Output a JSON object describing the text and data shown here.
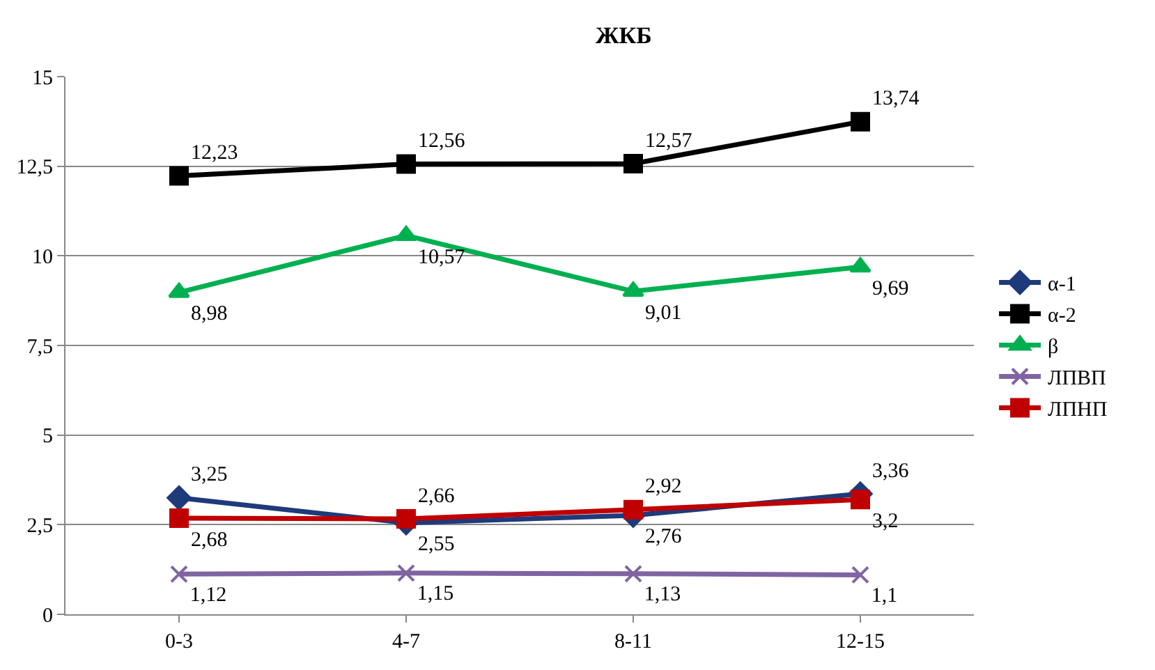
{
  "chart_data": {
    "type": "line",
    "title": "ЖКБ",
    "categories": [
      "0-3",
      "4-7",
      "8-11",
      "12-15"
    ],
    "series": [
      {
        "name": "α-1",
        "color": "#1f3a7a",
        "marker": "diamond",
        "values": [
          3.25,
          2.55,
          2.76,
          3.36
        ],
        "value_labels": [
          "3,25",
          "2,55",
          "2,76",
          "3,36"
        ]
      },
      {
        "name": "α-2",
        "color": "#000000",
        "marker": "square",
        "values": [
          12.23,
          12.56,
          12.57,
          13.74
        ],
        "value_labels": [
          "12,23",
          "12,56",
          "12,57",
          "13,74"
        ]
      },
      {
        "name": "β",
        "color": "#00b050",
        "marker": "triangle",
        "values": [
          8.98,
          10.57,
          9.01,
          9.69
        ],
        "value_labels": [
          "8,98",
          "10,57",
          "9,01",
          "9,69"
        ]
      },
      {
        "name": "ЛПВП",
        "color": "#8064a2",
        "marker": "cross",
        "values": [
          1.12,
          1.15,
          1.13,
          1.1
        ],
        "value_labels": [
          "1,12",
          "1,15",
          "1,13",
          "1,1"
        ]
      },
      {
        "name": "ЛПНП",
        "color": "#c00000",
        "marker": "square",
        "values": [
          2.68,
          2.66,
          2.92,
          3.2
        ],
        "value_labels": [
          "2,68",
          "2,66",
          "2,92",
          "3,2"
        ]
      }
    ],
    "ylim": [
      0,
      15
    ],
    "yticks": [
      0,
      {
        "value": 2.5,
        "label": "2,5"
      },
      5,
      {
        "value": 7.5,
        "label": "7,5"
      },
      10,
      {
        "value": 12.5,
        "label": "12,5"
      },
      15
    ],
    "grid": "y",
    "legend": "right"
  }
}
